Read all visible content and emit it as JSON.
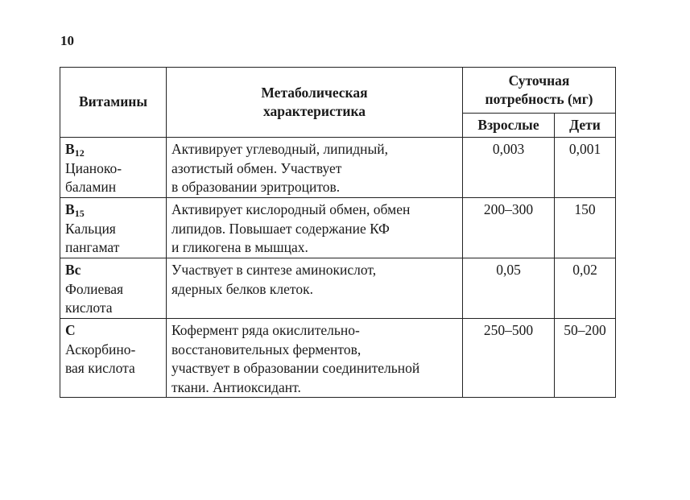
{
  "page_number": "10",
  "table": {
    "headers": {
      "vitamins": "Витамины",
      "metabolic": [
        "Метаболическая",
        "характеристика"
      ],
      "daily": [
        "Суточная",
        "потребность (мг)"
      ],
      "adults": "Взрослые",
      "children": "Дети"
    },
    "rows": [
      {
        "code": "B",
        "sub": "12",
        "name": [
          "Цианоко-",
          "баламин"
        ],
        "desc": [
          "Активирует углеводный, липидный,",
          "азотистый обмен. Участвует",
          "в образовании эритроцитов."
        ],
        "adults": "0,003",
        "children": "0,001"
      },
      {
        "code": "B",
        "sub": "15",
        "name": [
          "Кальция",
          "пангамат"
        ],
        "desc": [
          "Активирует кислородный обмен, обмен",
          "липидов. Повышает содержание КФ",
          "и гликогена в мышцах."
        ],
        "adults": "200–300",
        "children": "150"
      },
      {
        "code": "Bc",
        "sub": "",
        "name": [
          "Фолиевая",
          "кислота"
        ],
        "desc": [
          "Участвует в синтезе аминокислот,",
          "ядерных белков клеток."
        ],
        "adults": "0,05",
        "children": "0,02"
      },
      {
        "code": "C",
        "sub": "",
        "name": [
          "Аскорбино-",
          "вая кислота"
        ],
        "desc": [
          "Кофермент ряда окислительно-",
          "восстановительных ферментов,",
          "участвует в образовании соединительной",
          "ткани. Антиоксидант."
        ],
        "adults": "250–500",
        "children": "50–200"
      }
    ]
  }
}
